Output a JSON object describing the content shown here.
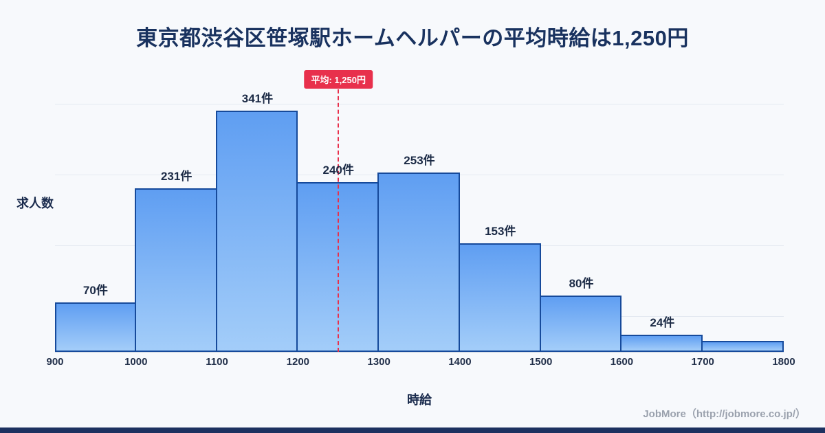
{
  "title": "東京都渋谷区笹塚駅ホームヘルパーの平均時給は1,250円",
  "chart_data": {
    "type": "bar",
    "subtype": "histogram",
    "title": "東京都渋谷区笹塚駅ホームヘルパーの平均時給は1,250円",
    "xlabel": "時給",
    "ylabel": "求人数",
    "bin_edges": [
      900,
      1000,
      1100,
      1200,
      1300,
      1400,
      1500,
      1600,
      1700,
      1800
    ],
    "values": [
      70,
      231,
      341,
      240,
      253,
      153,
      80,
      24,
      16
    ],
    "labels": [
      "70件",
      "231件",
      "341件",
      "240件",
      "253件",
      "153件",
      "80件",
      "24件",
      ""
    ],
    "average": {
      "value": 1250,
      "label": "平均: 1,250円"
    },
    "ylim": [
      0,
      400
    ],
    "gridlines": [
      50,
      150,
      250,
      350
    ],
    "grid": "horizontal-faint",
    "legend": "none",
    "colors": {
      "bar_fill_top": "#5f9ef2",
      "bar_fill_bottom": "#a3cdf9",
      "bar_border": "#164a9b",
      "average_line": "#e8304c",
      "title_text": "#19325f",
      "background": "#f7f9fc",
      "bottom_strip": "#1d3160"
    }
  },
  "footer": {
    "credit": "JobMore（http://jobmore.co.jp/）"
  }
}
